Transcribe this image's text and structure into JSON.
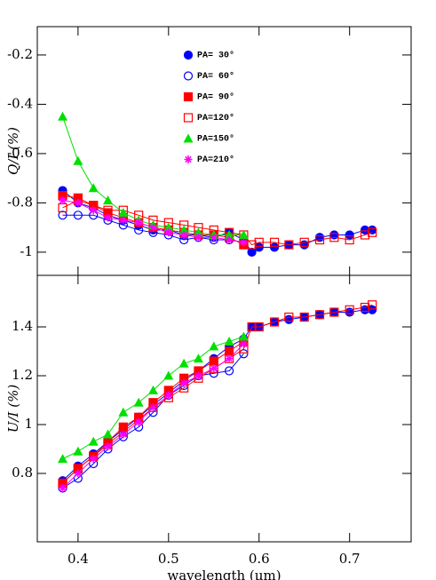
{
  "chart_data": [
    {
      "type": "line",
      "ylabel": "Q/I (%)",
      "xlim": [
        0.355,
        0.768
      ],
      "xticks": [
        0.4,
        0.5,
        0.6,
        0.7
      ],
      "ylim": [
        -1.094,
        -0.085
      ],
      "yticks": [
        -1,
        -0.8,
        -0.6,
        -0.4,
        -0.2
      ],
      "legend": "upper center",
      "series": [
        {
          "name": "PA= 30°",
          "color": "#0000ff",
          "marker": "circle-filled",
          "x": [
            0.383,
            0.4,
            0.417,
            0.433,
            0.45,
            0.467,
            0.483,
            0.5,
            0.517,
            0.533,
            0.55,
            0.567,
            0.583,
            0.592,
            0.6,
            0.617,
            0.633,
            0.65,
            0.667,
            0.683,
            0.7,
            0.717,
            0.725
          ],
          "values": [
            -0.75,
            -0.8,
            -0.82,
            -0.85,
            -0.87,
            -0.89,
            -0.91,
            -0.91,
            -0.93,
            -0.93,
            -0.94,
            -0.92,
            -0.95,
            -1.0,
            -0.98,
            -0.98,
            -0.97,
            -0.97,
            -0.94,
            -0.93,
            -0.93,
            -0.91,
            -0.91
          ]
        },
        {
          "name": "PA= 60°",
          "color": "#0000ff",
          "marker": "circle-open",
          "x": [
            0.383,
            0.4,
            0.417,
            0.433,
            0.45,
            0.467,
            0.483,
            0.5,
            0.517,
            0.533,
            0.55,
            0.567,
            0.583
          ],
          "values": [
            -0.85,
            -0.85,
            -0.85,
            -0.87,
            -0.89,
            -0.91,
            -0.92,
            -0.93,
            -0.95,
            -0.94,
            -0.95,
            -0.95,
            -0.96
          ]
        },
        {
          "name": "PA= 90°",
          "color": "#ff0000",
          "marker": "square-filled",
          "x": [
            0.383,
            0.4,
            0.417,
            0.433,
            0.45,
            0.467,
            0.483,
            0.5,
            0.517,
            0.533,
            0.55,
            0.567,
            0.583
          ],
          "values": [
            -0.77,
            -0.78,
            -0.81,
            -0.84,
            -0.86,
            -0.88,
            -0.9,
            -0.91,
            -0.92,
            -0.93,
            -0.93,
            -0.94,
            -0.97
          ]
        },
        {
          "name": "PA=120°",
          "color": "#ff0000",
          "marker": "square-open",
          "x": [
            0.383,
            0.4,
            0.417,
            0.433,
            0.45,
            0.467,
            0.483,
            0.5,
            0.517,
            0.533,
            0.55,
            0.567,
            0.583,
            0.592,
            0.6,
            0.617,
            0.633,
            0.65,
            0.667,
            0.683,
            0.7,
            0.717,
            0.725
          ],
          "values": [
            -0.82,
            -0.79,
            -0.81,
            -0.83,
            -0.83,
            -0.85,
            -0.87,
            -0.88,
            -0.89,
            -0.9,
            -0.91,
            -0.92,
            -0.93,
            -0.97,
            -0.96,
            -0.96,
            -0.97,
            -0.96,
            -0.95,
            -0.94,
            -0.95,
            -0.93,
            -0.92
          ]
        },
        {
          "name": "PA=150°",
          "color": "#00e000",
          "marker": "triangle-filled",
          "x": [
            0.383,
            0.4,
            0.417,
            0.433,
            0.45,
            0.467,
            0.483,
            0.5,
            0.517,
            0.533,
            0.55,
            0.567,
            0.583
          ],
          "values": [
            -0.45,
            -0.63,
            -0.74,
            -0.79,
            -0.84,
            -0.87,
            -0.89,
            -0.9,
            -0.91,
            -0.92,
            -0.93,
            -0.93,
            -0.93
          ]
        },
        {
          "name": "PA=210°",
          "color": "#ff00ff",
          "marker": "star",
          "x": [
            0.383,
            0.4,
            0.417,
            0.433,
            0.45,
            0.467,
            0.483,
            0.5,
            0.517,
            0.533,
            0.55,
            0.567,
            0.583
          ],
          "values": [
            -0.79,
            -0.8,
            -0.83,
            -0.86,
            -0.87,
            -0.88,
            -0.9,
            -0.92,
            -0.93,
            -0.94,
            -0.94,
            -0.95,
            -0.96
          ]
        }
      ]
    },
    {
      "type": "line",
      "ylabel": "U/I (%)",
      "xlabel": "wavelength (μm)",
      "xlim": [
        0.355,
        0.768
      ],
      "xticks": [
        0.4,
        0.5,
        0.6,
        0.7
      ],
      "ylim": [
        0.52,
        1.611
      ],
      "yticks": [
        0.8,
        1,
        1.2,
        1.4
      ],
      "series": [
        {
          "color": "#0000ff",
          "marker": "circle-filled",
          "x": [
            0.383,
            0.4,
            0.417,
            0.433,
            0.45,
            0.467,
            0.483,
            0.5,
            0.517,
            0.533,
            0.55,
            0.567,
            0.583,
            0.592,
            0.6,
            0.617,
            0.633,
            0.65,
            0.667,
            0.683,
            0.7,
            0.717,
            0.725
          ],
          "values": [
            0.77,
            0.83,
            0.88,
            0.93,
            0.98,
            1.03,
            1.08,
            1.13,
            1.18,
            1.22,
            1.27,
            1.32,
            1.35,
            1.4,
            1.4,
            1.42,
            1.43,
            1.44,
            1.45,
            1.46,
            1.46,
            1.47,
            1.47
          ]
        },
        {
          "color": "#0000ff",
          "marker": "circle-open",
          "x": [
            0.383,
            0.4,
            0.417,
            0.433,
            0.45,
            0.467,
            0.483,
            0.5,
            0.517,
            0.533,
            0.55,
            0.567,
            0.583
          ],
          "values": [
            0.74,
            0.78,
            0.84,
            0.9,
            0.95,
            0.99,
            1.05,
            1.12,
            1.16,
            1.2,
            1.21,
            1.22,
            1.29
          ]
        },
        {
          "color": "#ff0000",
          "marker": "square-filled",
          "x": [
            0.383,
            0.4,
            0.417,
            0.433,
            0.45,
            0.467,
            0.483,
            0.5,
            0.517,
            0.533,
            0.55,
            0.567,
            0.583
          ],
          "values": [
            0.76,
            0.82,
            0.87,
            0.93,
            0.99,
            1.03,
            1.09,
            1.14,
            1.19,
            1.22,
            1.26,
            1.3,
            1.34
          ]
        },
        {
          "color": "#ff0000",
          "marker": "square-open",
          "x": [
            0.383,
            0.4,
            0.417,
            0.433,
            0.45,
            0.467,
            0.483,
            0.5,
            0.517,
            0.533,
            0.55,
            0.567,
            0.583,
            0.592,
            0.6,
            0.617,
            0.633,
            0.65,
            0.667,
            0.683,
            0.7,
            0.717,
            0.725
          ],
          "values": [
            0.76,
            0.82,
            0.87,
            0.92,
            0.97,
            1.02,
            1.07,
            1.11,
            1.15,
            1.19,
            1.23,
            1.27,
            1.31,
            1.4,
            1.4,
            1.42,
            1.44,
            1.44,
            1.45,
            1.46,
            1.47,
            1.48,
            1.49
          ]
        },
        {
          "color": "#00e000",
          "marker": "triangle-filled",
          "x": [
            0.383,
            0.4,
            0.417,
            0.433,
            0.45,
            0.467,
            0.483,
            0.5,
            0.517,
            0.533,
            0.55,
            0.567,
            0.583
          ],
          "values": [
            0.86,
            0.89,
            0.93,
            0.96,
            1.05,
            1.09,
            1.14,
            1.2,
            1.25,
            1.27,
            1.32,
            1.34,
            1.36
          ]
        },
        {
          "color": "#ff00ff",
          "marker": "star",
          "x": [
            0.383,
            0.4,
            0.417,
            0.433,
            0.45,
            0.467,
            0.483,
            0.5,
            0.517,
            0.533,
            0.55,
            0.567,
            0.583
          ],
          "values": [
            0.74,
            0.8,
            0.86,
            0.91,
            0.96,
            1.01,
            1.07,
            1.12,
            1.17,
            1.2,
            1.23,
            1.27,
            1.33
          ]
        }
      ]
    }
  ]
}
